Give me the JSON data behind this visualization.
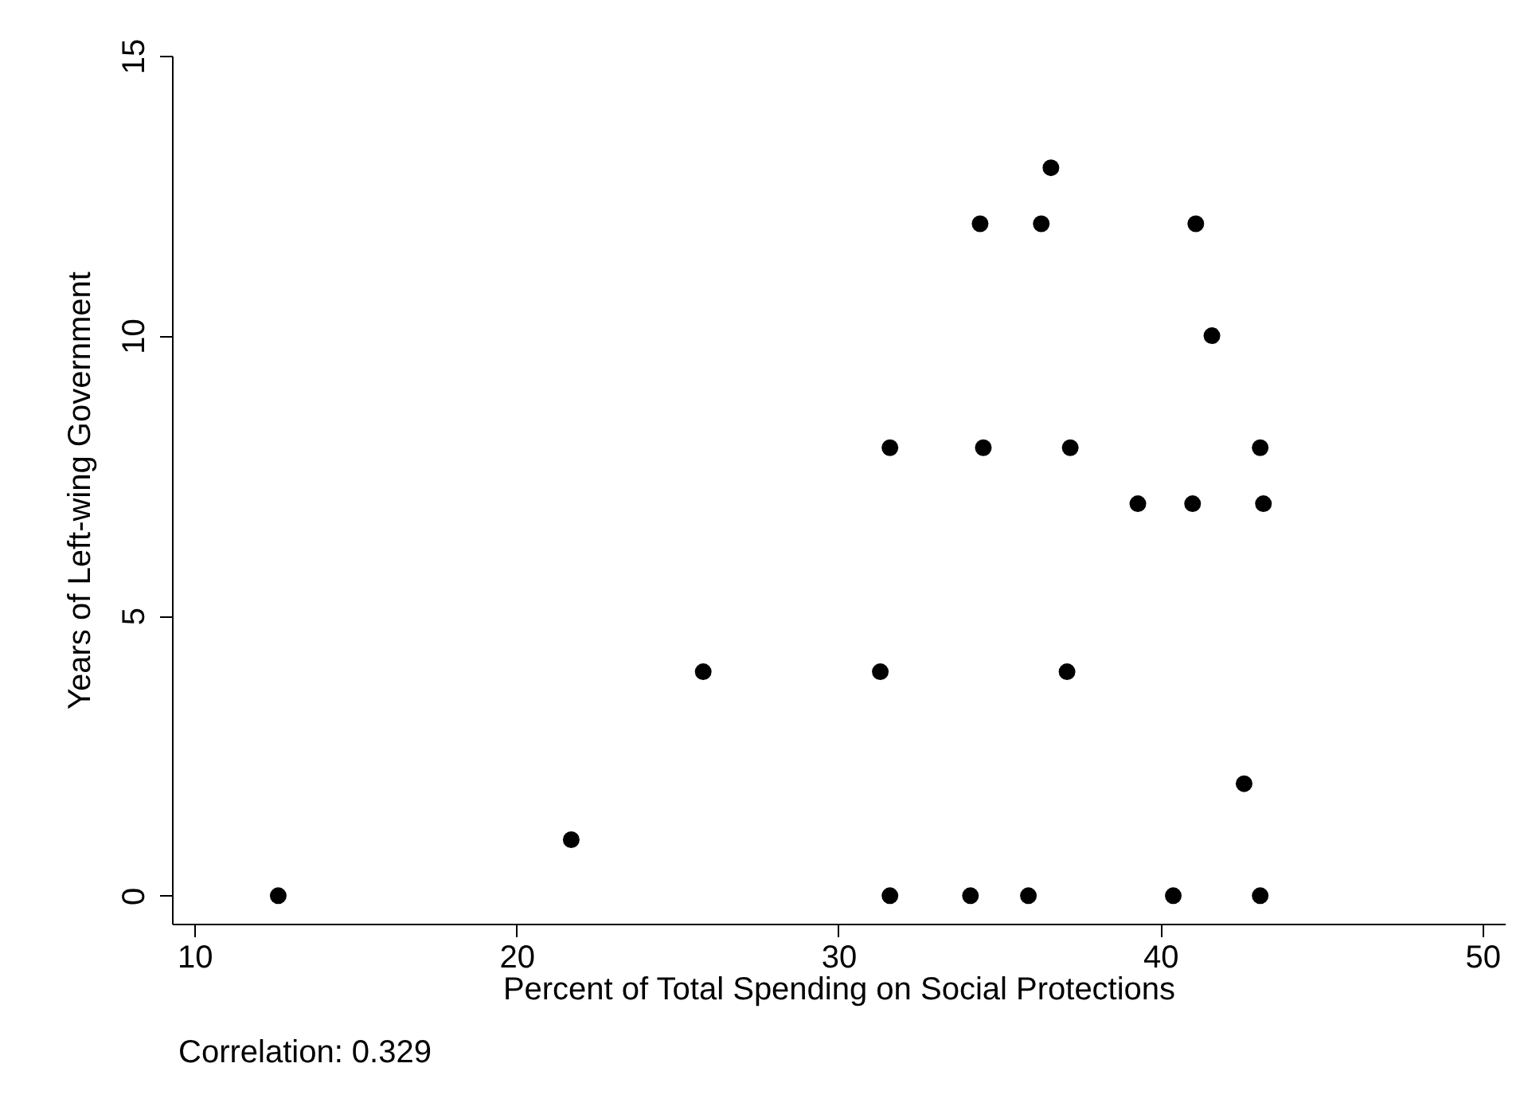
{
  "chart_data": {
    "type": "scatter",
    "xlabel": "Percent of Total Spending on Social Protections",
    "ylabel": "Years of Left-wing Government",
    "annotations": [
      "Correlation: 0.329"
    ],
    "x": [
      12.6,
      21.7,
      25.8,
      31.3,
      31.6,
      31.6,
      34.1,
      34.4,
      34.5,
      35.9,
      36.3,
      36.6,
      37.1,
      37.2,
      39.3,
      40.4,
      41.0,
      41.1,
      41.6,
      42.6,
      43.1,
      43.1,
      43.2
    ],
    "series": [
      {
        "color": "#000000",
        "values": [
          0,
          1,
          4,
          4,
          8,
          0,
          0,
          12,
          8,
          0,
          12,
          13,
          4,
          8,
          7,
          0,
          7,
          12,
          10,
          2,
          8,
          0,
          7
        ]
      }
    ],
    "xlim": [
      9.3,
      50.7
    ],
    "ylim": [
      -0.5,
      15
    ],
    "xticks": [
      10,
      20,
      30,
      40,
      50
    ],
    "yticks": [
      0,
      5,
      10,
      15
    ],
    "grid": false,
    "marker": "circle"
  }
}
